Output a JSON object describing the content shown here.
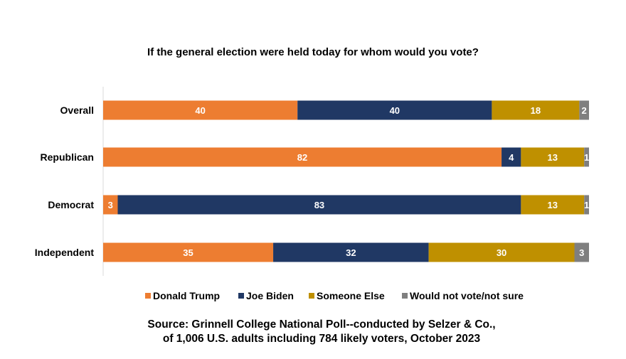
{
  "chart_data": {
    "type": "bar",
    "orientation": "horizontal",
    "stacked": true,
    "title": "If the general election were held today for whom would you vote?",
    "categories": [
      "Overall",
      "Republican",
      "Democrat",
      "Independent"
    ],
    "series": [
      {
        "name": "Donald Trump",
        "color": "#ED7D31",
        "values": [
          40,
          82,
          3,
          35
        ]
      },
      {
        "name": "Joe Biden",
        "color": "#203864",
        "values": [
          40,
          4,
          83,
          32
        ]
      },
      {
        "name": "Someone Else",
        "color": "#BF9000",
        "values": [
          18,
          13,
          13,
          30
        ]
      },
      {
        "name": "Would not vote/not sure",
        "color": "#7F7F7F",
        "values": [
          2,
          1,
          1,
          3
        ]
      }
    ],
    "xlim": [
      0,
      100
    ],
    "grid": false,
    "data_labels": true,
    "legend_placement": "bottom",
    "source_line1": "Source: Grinnell College National Poll--conducted by Selzer & Co.,",
    "source_line2": "of 1,006 U.S. adults including 784 likely voters, October 2023"
  }
}
